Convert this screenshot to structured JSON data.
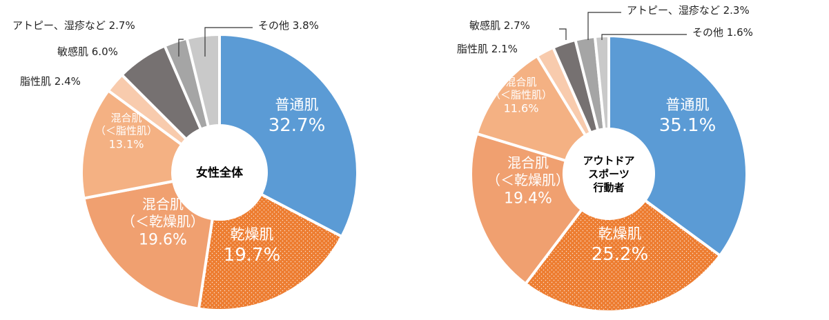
{
  "colors": {
    "normal": "#5b9bd5",
    "dry": "#ed7d31",
    "mixed_dry": "#f0a070",
    "mixed_oily": "#f4b183",
    "oily": "#f8cbad",
    "sensitive": "#767171",
    "atopy": "#a5a5a5",
    "other": "#c9c9c9"
  },
  "chart_data": [
    {
      "type": "pie",
      "title": "女性全体",
      "slices": [
        {
          "name": "普通肌",
          "value": 32.7,
          "color_key": "normal"
        },
        {
          "name": "乾燥肌",
          "value": 19.7,
          "color_key": "dry",
          "pattern": "dots"
        },
        {
          "name": "混合肌 （＜乾燥肌）",
          "value": 19.6,
          "color_key": "mixed_dry"
        },
        {
          "name": "混合肌 （＜脂性肌）",
          "value": 13.1,
          "color_key": "mixed_oily"
        },
        {
          "name": "脂性肌",
          "value": 2.4,
          "color_key": "oily"
        },
        {
          "name": "敏感肌",
          "value": 6.0,
          "color_key": "sensitive"
        },
        {
          "name": "アトピー、湿疹など",
          "value": 2.7,
          "color_key": "atopy"
        },
        {
          "name": "その他",
          "value": 3.8,
          "color_key": "other"
        }
      ],
      "labels": [
        {
          "lines": [
            "普通肌",
            "32.7%"
          ],
          "placement": "inside"
        },
        {
          "lines": [
            "乾燥肌",
            "19.7%"
          ],
          "placement": "inside"
        },
        {
          "lines": [
            "混合肌",
            "（＜乾燥肌）",
            "19.6%"
          ],
          "placement": "inside"
        },
        {
          "lines": [
            "混合肌",
            "（＜脂性肌）",
            "13.1%"
          ],
          "placement": "inside"
        },
        {
          "lines": [
            "脂性肌 2.4%"
          ],
          "placement": "outside"
        },
        {
          "lines": [
            "敏感肌 6.0%"
          ],
          "placement": "outside"
        },
        {
          "lines": [
            "アトピー、湿疹など 2.7%"
          ],
          "placement": "outside"
        },
        {
          "lines": [
            "その他 3.8%"
          ],
          "placement": "outside"
        }
      ]
    },
    {
      "type": "pie",
      "title": "アウトドアスポーツ行動者",
      "title_lines": [
        "アウトドア",
        "スポーツ",
        "行動者"
      ],
      "slices": [
        {
          "name": "普通肌",
          "value": 35.1,
          "color_key": "normal"
        },
        {
          "name": "乾燥肌",
          "value": 25.2,
          "color_key": "dry",
          "pattern": "dots"
        },
        {
          "name": "混合肌 （＜乾燥肌）",
          "value": 19.4,
          "color_key": "mixed_dry"
        },
        {
          "name": "混合肌 （＜脂性肌）",
          "value": 11.6,
          "color_key": "mixed_oily"
        },
        {
          "name": "脂性肌",
          "value": 2.1,
          "color_key": "oily"
        },
        {
          "name": "敏感肌",
          "value": 2.7,
          "color_key": "sensitive"
        },
        {
          "name": "アトピー、湿疹など",
          "value": 2.3,
          "color_key": "atopy"
        },
        {
          "name": "その他",
          "value": 1.6,
          "color_key": "other"
        }
      ],
      "labels": [
        {
          "lines": [
            "普通肌",
            "35.1%"
          ],
          "placement": "inside"
        },
        {
          "lines": [
            "乾燥肌",
            "25.2%"
          ],
          "placement": "inside"
        },
        {
          "lines": [
            "混合肌",
            "（＜乾燥肌）",
            "19.4%"
          ],
          "placement": "inside"
        },
        {
          "lines": [
            "混合肌",
            "（＜脂性肌）",
            "11.6%"
          ],
          "placement": "inside"
        },
        {
          "lines": [
            "脂性肌 2.1%"
          ],
          "placement": "outside"
        },
        {
          "lines": [
            "敏感肌 2.7%"
          ],
          "placement": "outside"
        },
        {
          "lines": [
            "アトピー、湿疹など 2.3%"
          ],
          "placement": "outside"
        },
        {
          "lines": [
            "その他 1.6%"
          ],
          "placement": "outside"
        }
      ]
    }
  ]
}
